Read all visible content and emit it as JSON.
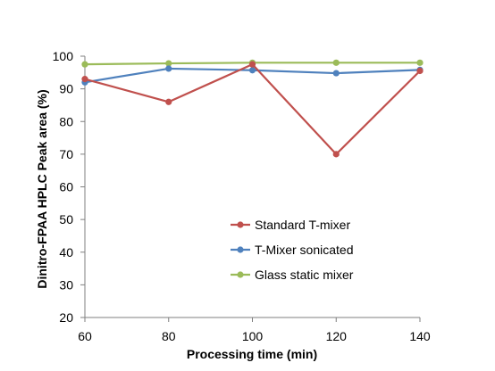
{
  "chart_data": {
    "type": "line",
    "title": "",
    "xlabel": "Processing time (min)",
    "ylabel": "Dinitro-FPAA HPLC Peak area (%)",
    "x": [
      60,
      80,
      100,
      120,
      140
    ],
    "x_ticks": [
      "60",
      "80",
      "100",
      "120",
      "140"
    ],
    "xlim": [
      60,
      140
    ],
    "ylim": [
      20,
      100
    ],
    "y_ticks": [
      "20",
      "30",
      "40",
      "50",
      "60",
      "70",
      "80",
      "90",
      "100"
    ],
    "grid": false,
    "legend_position": "center-right",
    "series": [
      {
        "name": "Standard T-mixer",
        "color": "#c0504d",
        "values": [
          93,
          86,
          97.5,
          70,
          95.5
        ]
      },
      {
        "name": "T-Mixer sonicated",
        "color": "#4f81bd",
        "values": [
          92,
          96.2,
          95.7,
          94.8,
          95.8
        ]
      },
      {
        "name": "Glass static mixer",
        "color": "#9bbb59",
        "values": [
          97.5,
          97.8,
          98,
          98,
          98
        ]
      }
    ]
  }
}
